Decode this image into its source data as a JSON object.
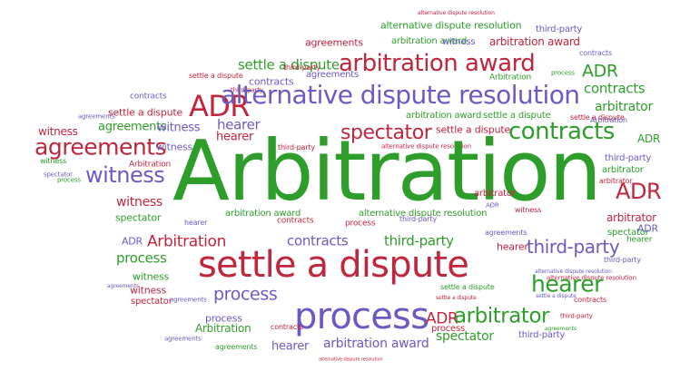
{
  "colors": {
    "green": "#2e9e2b",
    "red": "#c0263c",
    "purple": "#6a5bc2",
    "background": "#ffffff"
  },
  "words": [
    {
      "text": "alternative dispute resolution",
      "tone": "red"
    },
    {
      "text": "alternative dispute resolution",
      "tone": "green"
    },
    {
      "text": "third-party",
      "tone": "purple"
    },
    {
      "text": "agreements",
      "tone": "red"
    },
    {
      "text": "arbitration award",
      "tone": "green"
    },
    {
      "text": "witness",
      "tone": "purple"
    },
    {
      "text": "arbitration award",
      "tone": "red"
    },
    {
      "text": "contracts",
      "tone": "purple"
    },
    {
      "text": "settle a dispute",
      "tone": "green"
    },
    {
      "text": "third-party",
      "tone": "red"
    },
    {
      "text": "arbitration award",
      "tone": "red"
    },
    {
      "text": "agreements",
      "tone": "purple"
    },
    {
      "text": "ADR",
      "tone": "green"
    },
    {
      "text": "settle a dispute",
      "tone": "red"
    },
    {
      "text": "third-party",
      "tone": "red"
    },
    {
      "text": "Arbitration",
      "tone": "green"
    },
    {
      "text": "contracts",
      "tone": "purple"
    },
    {
      "text": "process",
      "tone": "green"
    },
    {
      "text": "contracts",
      "tone": "green"
    },
    {
      "text": "ADR",
      "tone": "red"
    },
    {
      "text": "alternative dispute resolution",
      "tone": "purple"
    },
    {
      "text": "contracts",
      "tone": "purple"
    },
    {
      "text": "arbitrator",
      "tone": "green"
    },
    {
      "text": "agreements",
      "tone": "purple"
    },
    {
      "text": "settle a dispute",
      "tone": "red"
    },
    {
      "text": "arbitration award",
      "tone": "green"
    },
    {
      "text": "settle a dispute",
      "tone": "green"
    },
    {
      "text": "settle a dispute",
      "tone": "red"
    },
    {
      "text": "Arbitration",
      "tone": "purple"
    },
    {
      "text": "witness",
      "tone": "red"
    },
    {
      "text": "agreements",
      "tone": "green"
    },
    {
      "text": "hearer",
      "tone": "purple"
    },
    {
      "text": "witness",
      "tone": "purple"
    },
    {
      "text": "hearer",
      "tone": "red"
    },
    {
      "text": "spectator",
      "tone": "red"
    },
    {
      "text": "settle a dispute",
      "tone": "red"
    },
    {
      "text": "contracts",
      "tone": "green"
    },
    {
      "text": "ADR",
      "tone": "green"
    },
    {
      "text": "agreements",
      "tone": "red"
    },
    {
      "text": "third-party",
      "tone": "red"
    },
    {
      "text": "witness",
      "tone": "purple"
    },
    {
      "text": "alternative dispute resolution",
      "tone": "red"
    },
    {
      "text": "third-party",
      "tone": "purple"
    },
    {
      "text": "witness",
      "tone": "purple"
    },
    {
      "text": "spectator",
      "tone": "purple"
    },
    {
      "text": "process",
      "tone": "green"
    },
    {
      "text": "Arbitration",
      "tone": "red"
    },
    {
      "text": "Arbitration",
      "tone": "green"
    },
    {
      "text": "arbitrator",
      "tone": "green"
    },
    {
      "text": "ADR",
      "tone": "red"
    },
    {
      "text": "witness",
      "tone": "red"
    },
    {
      "text": "spectator",
      "tone": "green"
    },
    {
      "text": "hearer",
      "tone": "purple"
    },
    {
      "text": "arbitrator",
      "tone": "red"
    },
    {
      "text": "ADR",
      "tone": "purple"
    },
    {
      "text": "Arbitration",
      "tone": "red"
    },
    {
      "text": "contracts",
      "tone": "purple"
    },
    {
      "text": "third-party",
      "tone": "green"
    },
    {
      "text": "agreements",
      "tone": "purple"
    },
    {
      "text": "hearer",
      "tone": "red"
    },
    {
      "text": "spectator",
      "tone": "green"
    },
    {
      "text": "process",
      "tone": "green"
    },
    {
      "text": "third-party",
      "tone": "purple"
    },
    {
      "text": "witness",
      "tone": "green"
    },
    {
      "text": "settle a dispute",
      "tone": "red"
    },
    {
      "text": "alternative dispute resolution",
      "tone": "purple"
    },
    {
      "text": "witness",
      "tone": "red"
    },
    {
      "text": "spectator",
      "tone": "red"
    },
    {
      "text": "alternative dispute resolution",
      "tone": "red"
    },
    {
      "text": "process",
      "tone": "purple"
    },
    {
      "text": "settle a dispute",
      "tone": "red"
    },
    {
      "text": "process",
      "tone": "purple"
    },
    {
      "text": "hearer",
      "tone": "green"
    },
    {
      "text": "contracts",
      "tone": "red"
    },
    {
      "text": "agreements",
      "tone": "purple"
    },
    {
      "text": "settle a dispute",
      "tone": "purple"
    },
    {
      "text": "third-party",
      "tone": "red"
    },
    {
      "text": "Arbitration",
      "tone": "green"
    },
    {
      "text": "process",
      "tone": "purple"
    },
    {
      "text": "ADR",
      "tone": "red"
    },
    {
      "text": "arbitrator",
      "tone": "green"
    },
    {
      "text": "process",
      "tone": "red"
    },
    {
      "text": "agreements",
      "tone": "purple"
    },
    {
      "text": "hearer",
      "tone": "purple"
    },
    {
      "text": "arbitration award",
      "tone": "purple"
    },
    {
      "text": "spectator",
      "tone": "green"
    },
    {
      "text": "alternative dispute resolution",
      "tone": "red"
    },
    {
      "text": "third-party",
      "tone": "purple"
    },
    {
      "text": "agreements",
      "tone": "green"
    },
    {
      "text": "contracts",
      "tone": "red"
    },
    {
      "text": "settle a dispute",
      "tone": "green"
    },
    {
      "text": "witness",
      "tone": "red"
    },
    {
      "text": "ADR",
      "tone": "purple"
    },
    {
      "text": "arbitrator",
      "tone": "red"
    },
    {
      "text": "alternative dispute resolution",
      "tone": "green"
    },
    {
      "text": "arbitrator",
      "tone": "red"
    },
    {
      "text": "third-party",
      "tone": "purple"
    },
    {
      "text": "agreements",
      "tone": "purple"
    },
    {
      "text": "arbitration award",
      "tone": "green"
    },
    {
      "text": "contracts",
      "tone": "red"
    },
    {
      "text": "witness",
      "tone": "green"
    },
    {
      "text": "ADR",
      "tone": "purple"
    },
    {
      "text": "process",
      "tone": "red"
    },
    {
      "text": "agreements",
      "tone": "green"
    },
    {
      "text": "third-party",
      "tone": "purple"
    },
    {
      "text": "hearer",
      "tone": "green"
    }
  ]
}
